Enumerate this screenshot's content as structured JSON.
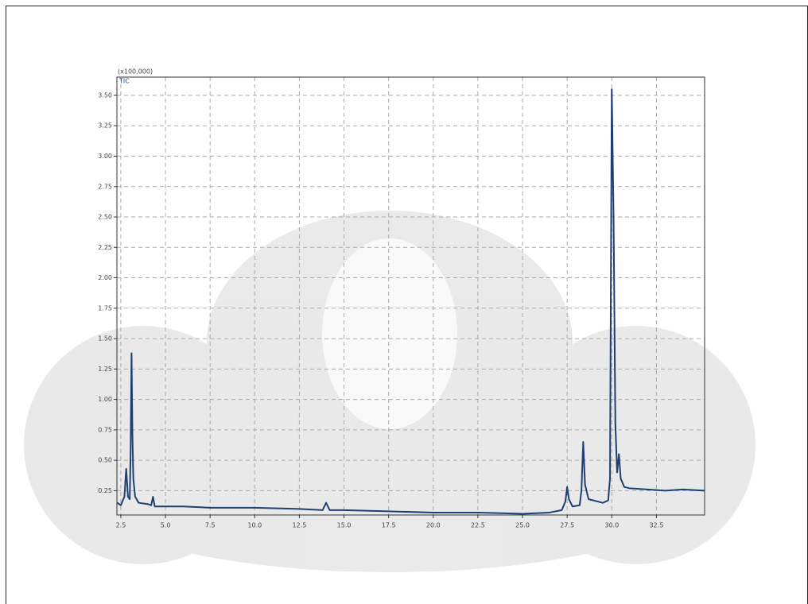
{
  "chart_data": {
    "type": "line",
    "y_label": "(x100,000)",
    "x": [
      2.3,
      2.5,
      2.7,
      2.8,
      2.9,
      3.0,
      3.05,
      3.1,
      3.15,
      3.2,
      3.3,
      3.5,
      4.0,
      4.2,
      4.3,
      4.4,
      5,
      6,
      7.5,
      10,
      12.5,
      13.8,
      14.0,
      14.2,
      15,
      17.5,
      20,
      22.5,
      25,
      26.5,
      27.2,
      27.4,
      27.5,
      27.6,
      27.8,
      28.2,
      28.3,
      28.4,
      28.5,
      28.7,
      29.5,
      29.8,
      29.9,
      30.0,
      30.1,
      30.2,
      30.3,
      30.4,
      30.5,
      30.7,
      31,
      32,
      33,
      34,
      35.2
    ],
    "series": [
      {
        "name": "TIC",
        "color": "#1f3f73",
        "values": [
          0.15,
          0.13,
          0.2,
          0.43,
          0.2,
          0.18,
          0.6,
          1.38,
          0.7,
          0.35,
          0.2,
          0.15,
          0.14,
          0.13,
          0.2,
          0.12,
          0.12,
          0.12,
          0.11,
          0.11,
          0.1,
          0.09,
          0.15,
          0.09,
          0.09,
          0.08,
          0.07,
          0.07,
          0.06,
          0.07,
          0.09,
          0.16,
          0.28,
          0.18,
          0.12,
          0.13,
          0.25,
          0.65,
          0.3,
          0.18,
          0.15,
          0.17,
          0.35,
          3.55,
          2.5,
          0.8,
          0.4,
          0.55,
          0.35,
          0.28,
          0.27,
          0.26,
          0.25,
          0.26,
          0.25
        ]
      }
    ],
    "xlim": [
      2.28,
      35.2
    ],
    "ylim": [
      0.05,
      3.65
    ],
    "xticks": [
      2.5,
      {
        "value": 5,
        "label": "5.0"
      },
      7.5,
      {
        "value": 10,
        "label": "10.0"
      },
      12.5,
      {
        "value": 15,
        "label": "15.0"
      },
      17.5,
      {
        "value": 20,
        "label": "20.0"
      },
      22.5,
      {
        "value": 25,
        "label": "25.0"
      },
      27.5,
      {
        "value": 30,
        "label": "30.0"
      },
      32.5
    ],
    "yticks": [
      0.25,
      {
        "value": 0.5,
        "label": "0.50"
      },
      0.75,
      {
        "value": 1,
        "label": "1.00"
      },
      1.25,
      {
        "value": 1.5,
        "label": "1.50"
      },
      1.75,
      {
        "value": 2,
        "label": "2.00"
      },
      2.25,
      {
        "value": 2.5,
        "label": "2.50"
      },
      2.75,
      {
        "value": 3,
        "label": "3.00"
      },
      3.25,
      {
        "value": 3.5,
        "label": "3.50"
      }
    ],
    "grid": true
  }
}
